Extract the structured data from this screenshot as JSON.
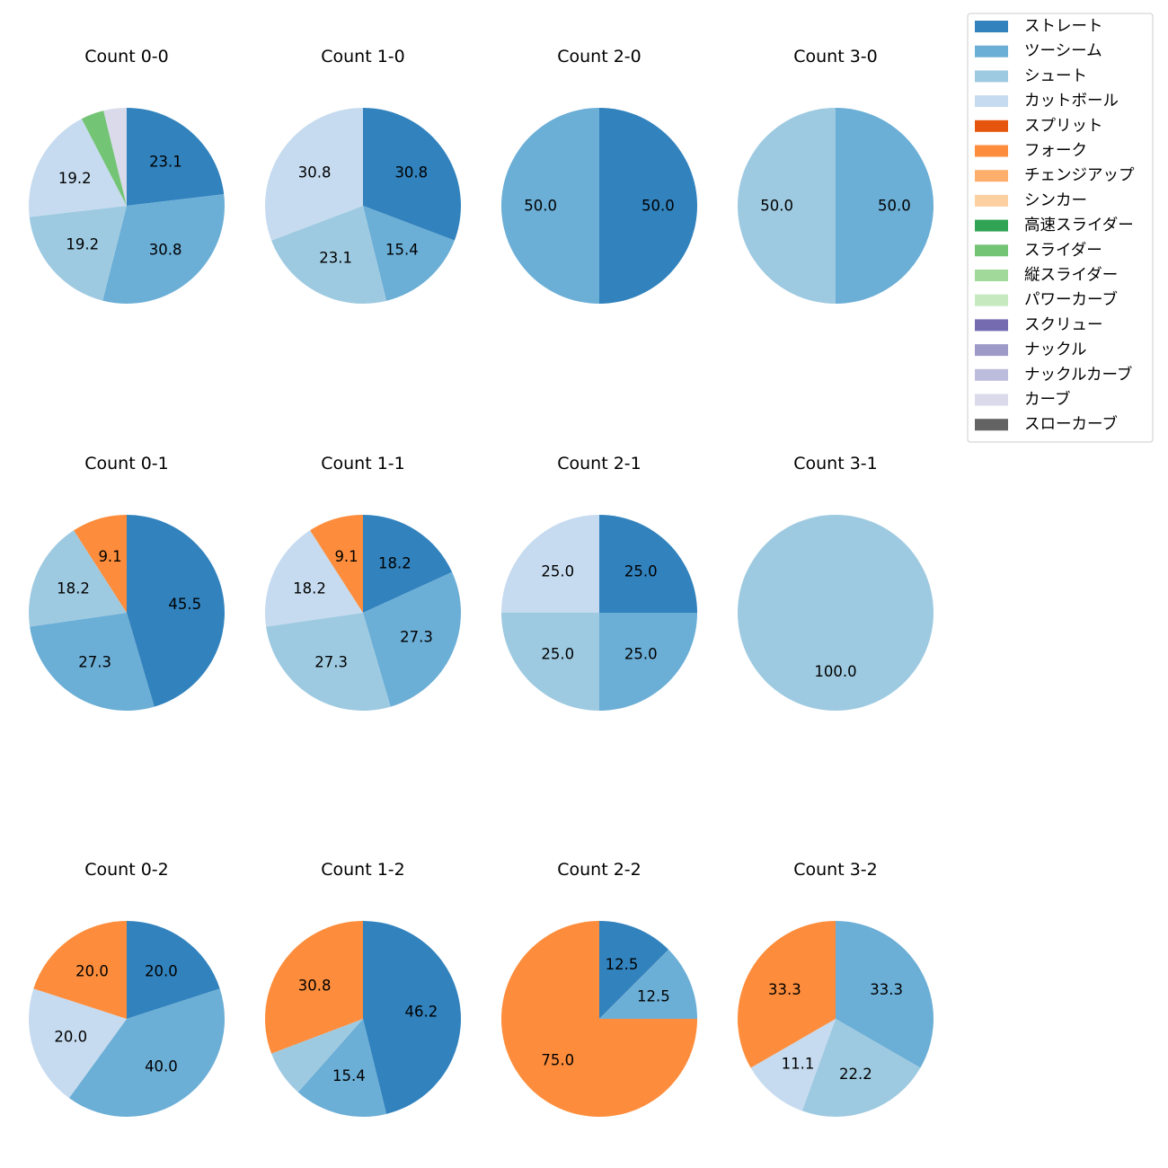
{
  "chart_data": {
    "type": "pie",
    "legend": {
      "placement": "top-right",
      "entries": [
        {
          "name": "ストレート",
          "color": "#3182bd"
        },
        {
          "name": "ツーシーム",
          "color": "#6baed6"
        },
        {
          "name": "シュート",
          "color": "#9ecae1"
        },
        {
          "name": "カットボール",
          "color": "#c6dbef"
        },
        {
          "name": "スプリット",
          "color": "#e6550d"
        },
        {
          "name": "フォーク",
          "color": "#fd8d3c"
        },
        {
          "name": "チェンジアップ",
          "color": "#fdae6b"
        },
        {
          "name": "シンカー",
          "color": "#fdd0a2"
        },
        {
          "name": "高速スライダー",
          "color": "#31a354"
        },
        {
          "name": "スライダー",
          "color": "#74c476"
        },
        {
          "name": "縦スライダー",
          "color": "#a1d99b"
        },
        {
          "name": "パワーカーブ",
          "color": "#c7e9c0"
        },
        {
          "name": "スクリュー",
          "color": "#756bb1"
        },
        {
          "name": "ナックル",
          "color": "#9e9ac8"
        },
        {
          "name": "ナックルカーブ",
          "color": "#bcbddc"
        },
        {
          "name": "カーブ",
          "color": "#dadaeb"
        },
        {
          "name": "スローカーブ",
          "color": "#636363"
        }
      ]
    },
    "pies": [
      {
        "title": "Count 0-0",
        "slices": [
          {
            "pitch": "ストレート",
            "value": 23.1,
            "label": "23.1"
          },
          {
            "pitch": "ツーシーム",
            "value": 30.8,
            "label": "30.8"
          },
          {
            "pitch": "シュート",
            "value": 19.2,
            "label": "19.2"
          },
          {
            "pitch": "カットボール",
            "value": 19.2,
            "label": "19.2"
          },
          {
            "pitch": "スライダー",
            "value": 3.8,
            "label": ""
          },
          {
            "pitch": "カーブ",
            "value": 3.8,
            "label": ""
          }
        ]
      },
      {
        "title": "Count 1-0",
        "slices": [
          {
            "pitch": "ストレート",
            "value": 30.8,
            "label": "30.8"
          },
          {
            "pitch": "ツーシーム",
            "value": 15.4,
            "label": "15.4"
          },
          {
            "pitch": "シュート",
            "value": 23.1,
            "label": "23.1"
          },
          {
            "pitch": "カットボール",
            "value": 30.8,
            "label": "30.8"
          }
        ]
      },
      {
        "title": "Count 2-0",
        "slices": [
          {
            "pitch": "ストレート",
            "value": 50.0,
            "label": "50.0"
          },
          {
            "pitch": "ツーシーム",
            "value": 50.0,
            "label": "50.0"
          }
        ]
      },
      {
        "title": "Count 3-0",
        "slices": [
          {
            "pitch": "ツーシーム",
            "value": 50.0,
            "label": "50.0"
          },
          {
            "pitch": "シュート",
            "value": 50.0,
            "label": "50.0"
          }
        ]
      },
      {
        "title": "Count 0-1",
        "slices": [
          {
            "pitch": "ストレート",
            "value": 45.5,
            "label": "45.5"
          },
          {
            "pitch": "ツーシーム",
            "value": 27.3,
            "label": "27.3"
          },
          {
            "pitch": "シュート",
            "value": 18.2,
            "label": "18.2"
          },
          {
            "pitch": "フォーク",
            "value": 9.1,
            "label": "9.1"
          }
        ]
      },
      {
        "title": "Count 1-1",
        "slices": [
          {
            "pitch": "ストレート",
            "value": 18.2,
            "label": "18.2"
          },
          {
            "pitch": "ツーシーム",
            "value": 27.3,
            "label": "27.3"
          },
          {
            "pitch": "シュート",
            "value": 27.3,
            "label": "27.3"
          },
          {
            "pitch": "カットボール",
            "value": 18.2,
            "label": "18.2"
          },
          {
            "pitch": "フォーク",
            "value": 9.1,
            "label": "9.1"
          }
        ]
      },
      {
        "title": "Count 2-1",
        "slices": [
          {
            "pitch": "ストレート",
            "value": 25.0,
            "label": "25.0"
          },
          {
            "pitch": "ツーシーム",
            "value": 25.0,
            "label": "25.0"
          },
          {
            "pitch": "シュート",
            "value": 25.0,
            "label": "25.0"
          },
          {
            "pitch": "カットボール",
            "value": 25.0,
            "label": "25.0"
          }
        ]
      },
      {
        "title": "Count 3-1",
        "slices": [
          {
            "pitch": "シュート",
            "value": 100.0,
            "label": "100.0"
          }
        ]
      },
      {
        "title": "Count 0-2",
        "slices": [
          {
            "pitch": "ストレート",
            "value": 20.0,
            "label": "20.0"
          },
          {
            "pitch": "ツーシーム",
            "value": 40.0,
            "label": "40.0"
          },
          {
            "pitch": "カットボール",
            "value": 20.0,
            "label": "20.0"
          },
          {
            "pitch": "フォーク",
            "value": 20.0,
            "label": "20.0"
          }
        ]
      },
      {
        "title": "Count 1-2",
        "slices": [
          {
            "pitch": "ストレート",
            "value": 46.2,
            "label": "46.2"
          },
          {
            "pitch": "ツーシーム",
            "value": 15.4,
            "label": "15.4"
          },
          {
            "pitch": "シュート",
            "value": 7.7,
            "label": ""
          },
          {
            "pitch": "フォーク",
            "value": 30.8,
            "label": "30.8"
          }
        ]
      },
      {
        "title": "Count 2-2",
        "slices": [
          {
            "pitch": "ストレート",
            "value": 12.5,
            "label": "12.5"
          },
          {
            "pitch": "ツーシーム",
            "value": 12.5,
            "label": "12.5"
          },
          {
            "pitch": "フォーク",
            "value": 75.0,
            "label": "75.0"
          }
        ]
      },
      {
        "title": "Count 3-2",
        "slices": [
          {
            "pitch": "ツーシーム",
            "value": 33.3,
            "label": "33.3"
          },
          {
            "pitch": "シュート",
            "value": 22.2,
            "label": "22.2"
          },
          {
            "pitch": "カットボール",
            "value": 11.1,
            "label": "11.1"
          },
          {
            "pitch": "フォーク",
            "value": 33.3,
            "label": "33.3"
          }
        ]
      }
    ]
  }
}
